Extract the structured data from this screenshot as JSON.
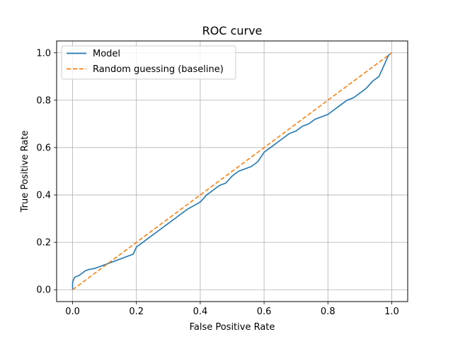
{
  "chart_data": {
    "type": "line",
    "title": "ROC curve",
    "xlabel": "False Positive Rate",
    "ylabel": "True Positive Rate",
    "xlim": [
      -0.05,
      1.05
    ],
    "ylim": [
      -0.05,
      1.05
    ],
    "xticks": [
      "0.0",
      "0.2",
      "0.4",
      "0.6",
      "0.8",
      "1.0"
    ],
    "yticks": [
      "0.0",
      "0.2",
      "0.4",
      "0.6",
      "0.8",
      "1.0"
    ],
    "grid": true,
    "legend_position": "top-left",
    "series": [
      {
        "name": "Model",
        "color": "#1f77b4",
        "style": "solid",
        "x": [
          0.0,
          0.0,
          0.005,
          0.01,
          0.02,
          0.03,
          0.04,
          0.05,
          0.07,
          0.09,
          0.11,
          0.13,
          0.15,
          0.17,
          0.19,
          0.2,
          0.22,
          0.24,
          0.26,
          0.28,
          0.3,
          0.32,
          0.34,
          0.36,
          0.38,
          0.4,
          0.42,
          0.44,
          0.46,
          0.48,
          0.5,
          0.52,
          0.54,
          0.56,
          0.58,
          0.6,
          0.62,
          0.64,
          0.66,
          0.68,
          0.7,
          0.72,
          0.74,
          0.76,
          0.78,
          0.8,
          0.82,
          0.84,
          0.86,
          0.88,
          0.9,
          0.92,
          0.94,
          0.96,
          0.97,
          0.98,
          0.99,
          1.0
        ],
        "y": [
          0.0,
          0.03,
          0.05,
          0.055,
          0.06,
          0.07,
          0.08,
          0.085,
          0.09,
          0.1,
          0.11,
          0.12,
          0.13,
          0.14,
          0.15,
          0.18,
          0.2,
          0.22,
          0.24,
          0.26,
          0.28,
          0.3,
          0.32,
          0.34,
          0.355,
          0.37,
          0.4,
          0.42,
          0.44,
          0.45,
          0.48,
          0.5,
          0.51,
          0.52,
          0.54,
          0.58,
          0.6,
          0.62,
          0.64,
          0.66,
          0.67,
          0.69,
          0.7,
          0.72,
          0.73,
          0.74,
          0.76,
          0.78,
          0.8,
          0.81,
          0.83,
          0.85,
          0.88,
          0.9,
          0.93,
          0.96,
          0.99,
          1.0
        ]
      },
      {
        "name": "Random guessing (baseline)",
        "color": "#ff7f0e",
        "style": "dashed",
        "x": [
          0.0,
          1.0
        ],
        "y": [
          0.0,
          1.0
        ]
      }
    ]
  }
}
